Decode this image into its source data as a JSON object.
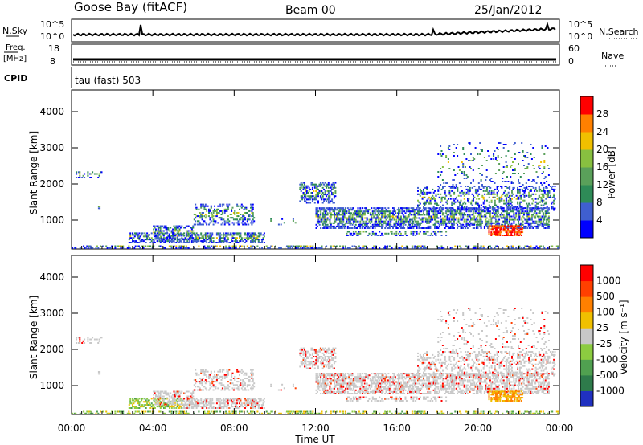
{
  "header": {
    "station": "Goose Bay (fitACF)",
    "beam": "Beam 00",
    "date": "25/Jan/2012"
  },
  "top_strips": {
    "nsky": {
      "label": "N.Sky",
      "tick_top": "10^5",
      "tick_bottom": "10^0"
    },
    "nsearch": {
      "label": "N.Search",
      "tick_top": "10^5",
      "tick_bottom": "10^0"
    },
    "freq": {
      "label_line1": "Freq.",
      "label_line2": "[MHz]",
      "tick_top": "18",
      "tick_bottom": "8"
    },
    "nave": {
      "label": "Nave",
      "tick_top": "60",
      "tick_bottom": "0"
    },
    "cpid": {
      "label": "CPID",
      "value": "tau (fast) 503"
    }
  },
  "colors": {
    "power": [
      "#0000ff",
      "#3f5fd0",
      "#2e8b57",
      "#5aa05a",
      "#88c040",
      "#f0c000",
      "#ff8000",
      "#ff0000"
    ],
    "velocity": [
      "#2030c0",
      "#2e7b4b",
      "#50a050",
      "#8ccc40",
      "#c8c8c8",
      "#f0c000",
      "#ff8000",
      "#ff4000",
      "#ff0000"
    ]
  },
  "chart_data": [
    {
      "type": "heatmap",
      "panel": "power",
      "ylabel": "Slant Range [km]",
      "xlabel": "",
      "yticks": [
        "1000",
        "2000",
        "3000",
        "4000"
      ],
      "ylim": [
        200,
        4600
      ],
      "xlim": [
        0,
        24
      ],
      "colorbar": {
        "label": "Power [dB]",
        "ticks": [
          "4",
          "8",
          "12",
          "16",
          "20",
          "24",
          "28"
        ],
        "range": [
          0,
          30
        ]
      }
    },
    {
      "type": "heatmap",
      "panel": "velocity",
      "ylabel": "Slant Range [km]",
      "xlabel": "Time UT",
      "xticks": [
        "00:00",
        "04:00",
        "08:00",
        "12:00",
        "16:00",
        "20:00",
        "00:00"
      ],
      "yticks": [
        "1000",
        "2000",
        "3000",
        "4000"
      ],
      "ylim": [
        200,
        4600
      ],
      "xlim": [
        0,
        24
      ],
      "colorbar": {
        "label": "Velocity [m s⁻¹]",
        "ticks": [
          "1000",
          "500",
          "100",
          "25",
          "-25",
          "-100",
          "-500",
          "-1000"
        ]
      }
    }
  ]
}
